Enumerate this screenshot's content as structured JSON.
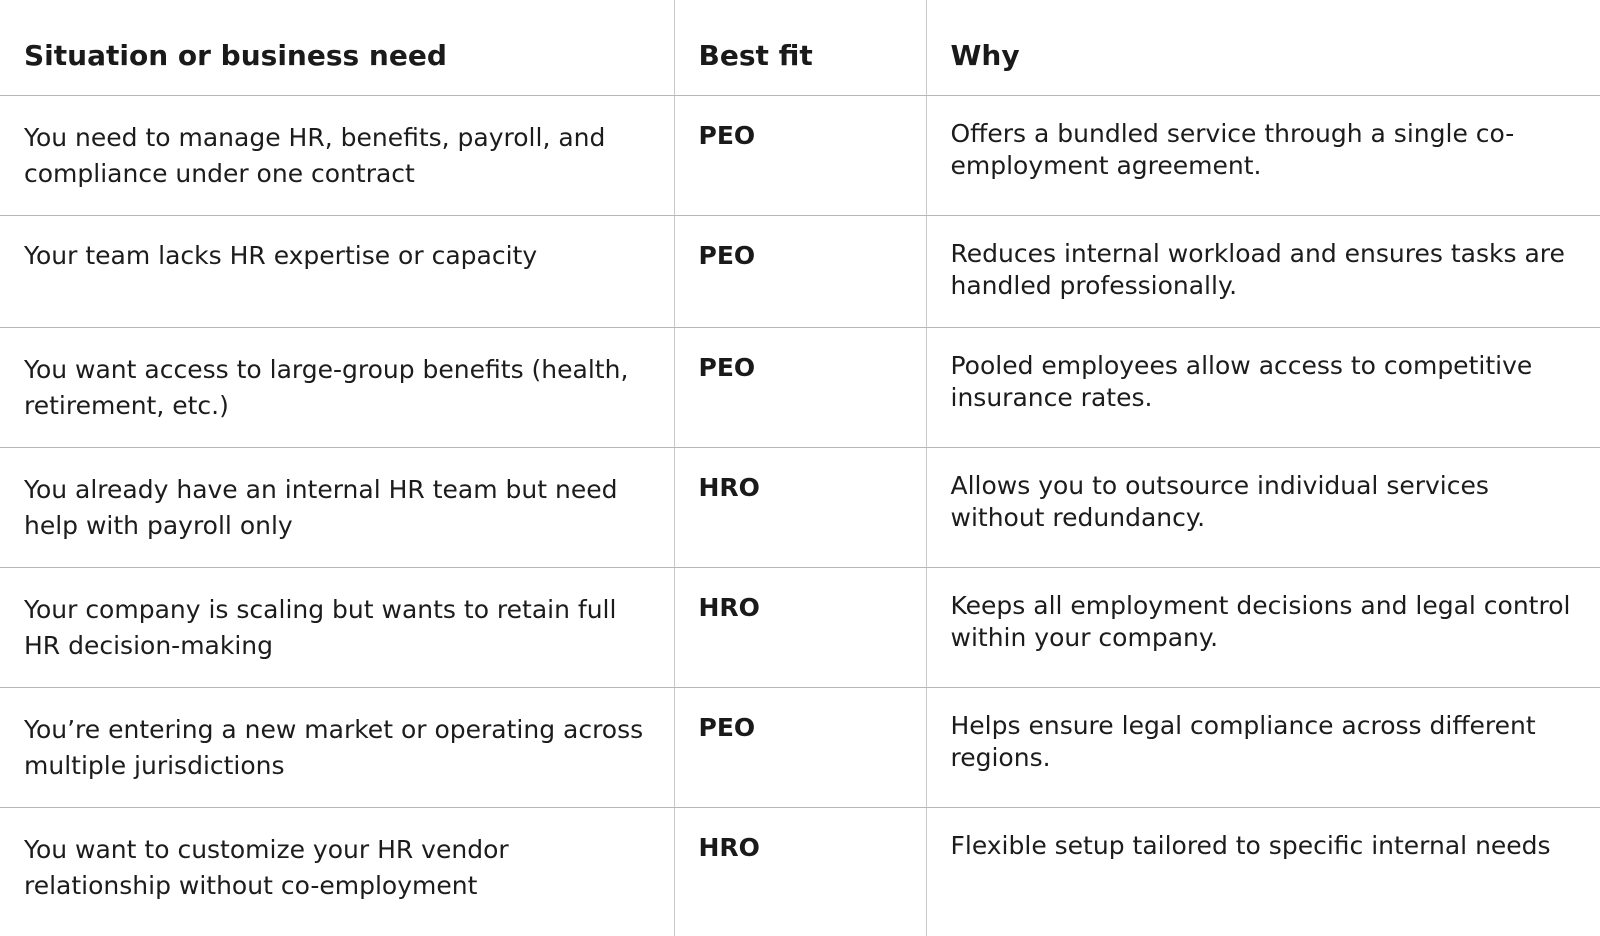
{
  "table": {
    "headers": {
      "need": "Situation or business need",
      "fit": "Best fit",
      "why": "Why"
    },
    "rows": [
      {
        "need": "You need to manage HR, benefits, payroll, and compliance under one contract",
        "fit": "PEO",
        "why": "Offers a bundled service through a single co-employment agreement."
      },
      {
        "need": "Your team lacks HR expertise or capacity",
        "fit": "PEO",
        "why": "Reduces internal workload and ensures tasks are handled professionally."
      },
      {
        "need": "You want access to large-group benefits (health, retirement, etc.)",
        "fit": "PEO",
        "why": "Pooled employees allow access to competitive insurance rates."
      },
      {
        "need": "You already have an internal HR team but need help with payroll only",
        "fit": "HRO",
        "why": "Allows you to outsource individual services without redundancy."
      },
      {
        "need": "Your company is scaling but wants to retain full HR decision-making",
        "fit": "HRO",
        "why": "Keeps all employment decisions and legal control within your company."
      },
      {
        "need": "You’re entering a new market or operating across multiple jurisdictions",
        "fit": "PEO",
        "why": "Helps ensure legal compliance across different regions."
      },
      {
        "need": "You want to customize your HR vendor relationship without co-employment",
        "fit": "HRO",
        "why": "Flexible setup tailored to specific internal needs"
      }
    ]
  }
}
